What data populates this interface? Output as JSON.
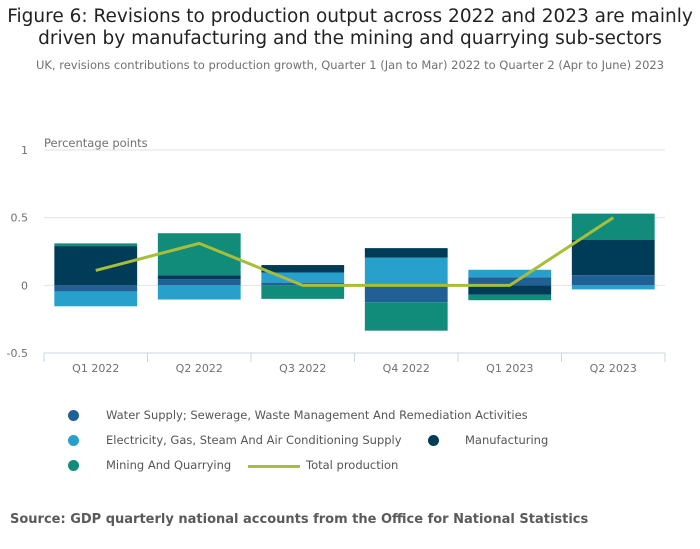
{
  "header": {
    "title": "Figure 6: Revisions to production output across 2022 and 2023 are mainly driven by manufacturing and the mining and quarrying sub-sectors",
    "subtitle": "UK, revisions contributions to production growth, Quarter 1 (Jan to Mar) 2022 to Quarter 2 (Apr to June) 2023"
  },
  "source": "Source: GDP quarterly national accounts from the Office for National Statistics",
  "chart_data": {
    "type": "bar",
    "stacked": true,
    "title": "Figure 6: Revisions to production output across 2022 and 2023 are mainly driven by manufacturing and the mining and quarrying sub-sectors",
    "subtitle": "UK, revisions contributions to production growth, Quarter 1 (Jan to Mar) 2022 to Quarter 2 (Apr to June) 2023",
    "xlabel": "",
    "ylabel": "Percentage points",
    "ylim": [
      -0.5,
      1
    ],
    "yticks": [
      1,
      0.5,
      0,
      -0.5
    ],
    "ytick_labels": [
      "1",
      "0.5",
      "0",
      "-0.5"
    ],
    "grid": true,
    "legend_position": "bottom",
    "categories": [
      "Q1 2022",
      "Q2 2022",
      "Q3 2022",
      "Q4 2022",
      "Q1 2023",
      "Q2 2023"
    ],
    "series": [
      {
        "name": "Water Supply; Sewerage, Waste Management And Remediation Activities",
        "type": "bar",
        "color": "#206095",
        "values": [
          -0.045,
          0.045,
          0.02,
          -0.125,
          0.06,
          0.075
        ]
      },
      {
        "name": "Electricity, Gas, Steam And Air Conditioning Supply",
        "type": "bar",
        "color": "#27a0cc",
        "values": [
          -0.11,
          -0.105,
          0.075,
          0.205,
          0.055,
          -0.03
        ]
      },
      {
        "name": "Manufacturing",
        "type": "bar",
        "color": "#003c57",
        "values": [
          0.29,
          0.03,
          0.055,
          0.07,
          -0.07,
          0.26
        ]
      },
      {
        "name": "Mining And Quarrying",
        "type": "bar",
        "color": "#118c7b",
        "values": [
          0.02,
          0.31,
          -0.1,
          -0.21,
          -0.04,
          0.195
        ]
      },
      {
        "name": "Total production",
        "type": "line",
        "color": "#a8bd3a",
        "values": [
          0.11,
          0.31,
          0.0,
          0.0,
          0.0,
          0.5
        ]
      }
    ]
  },
  "legend": {
    "items": [
      {
        "label": "Water Supply; Sewerage, Waste Management And Remediation Activities",
        "color": "#206095",
        "marker": "dot"
      },
      {
        "label": "Electricity, Gas, Steam And Air Conditioning Supply",
        "color": "#27a0cc",
        "marker": "dot"
      },
      {
        "label": "Manufacturing",
        "color": "#003c57",
        "marker": "dot"
      },
      {
        "label": "Mining And Quarrying",
        "color": "#118c7b",
        "marker": "dot"
      },
      {
        "label": "Total production",
        "color": "#a8bd3a",
        "marker": "line"
      }
    ]
  }
}
